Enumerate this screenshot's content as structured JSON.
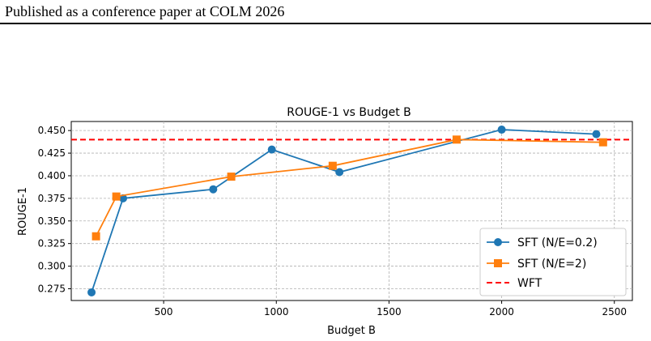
{
  "page": {
    "header": "Published as a conference paper at COLM 2026"
  },
  "chart_data": {
    "type": "line",
    "title": "ROUGE-1 vs Budget B",
    "xlabel": "Budget B",
    "ylabel": "ROUGE-1",
    "xlim": [
      90,
      2580
    ],
    "ylim": [
      0.262,
      0.46
    ],
    "xticks": [
      500,
      1000,
      1500,
      2000,
      2500
    ],
    "yticks": [
      0.275,
      0.3,
      0.325,
      0.35,
      0.375,
      0.4,
      0.425,
      0.45
    ],
    "xtick_labels": [
      "500",
      "1000",
      "1500",
      "2000",
      "2500"
    ],
    "ytick_labels": [
      "0.275",
      "0.300",
      "0.325",
      "0.350",
      "0.375",
      "0.400",
      "0.425",
      "0.450"
    ],
    "grid": true,
    "legend_position": "bottom-right",
    "series": [
      {
        "name": "SFT (N/E=0.2)",
        "color": "#1f77b4",
        "marker": "circle",
        "x": [
          180,
          320,
          720,
          980,
          1280,
          2000,
          2420
        ],
        "y": [
          0.271,
          0.375,
          0.385,
          0.429,
          0.404,
          0.451,
          0.446
        ]
      },
      {
        "name": "SFT (N/E=2)",
        "color": "#ff7f0e",
        "marker": "square",
        "x": [
          200,
          290,
          800,
          1250,
          1800,
          2450
        ],
        "y": [
          0.333,
          0.377,
          0.399,
          0.411,
          0.44,
          0.437
        ]
      }
    ],
    "reference_lines": [
      {
        "name": "WFT",
        "color": "#ff0000",
        "style": "dashed",
        "y": 0.44
      }
    ]
  }
}
